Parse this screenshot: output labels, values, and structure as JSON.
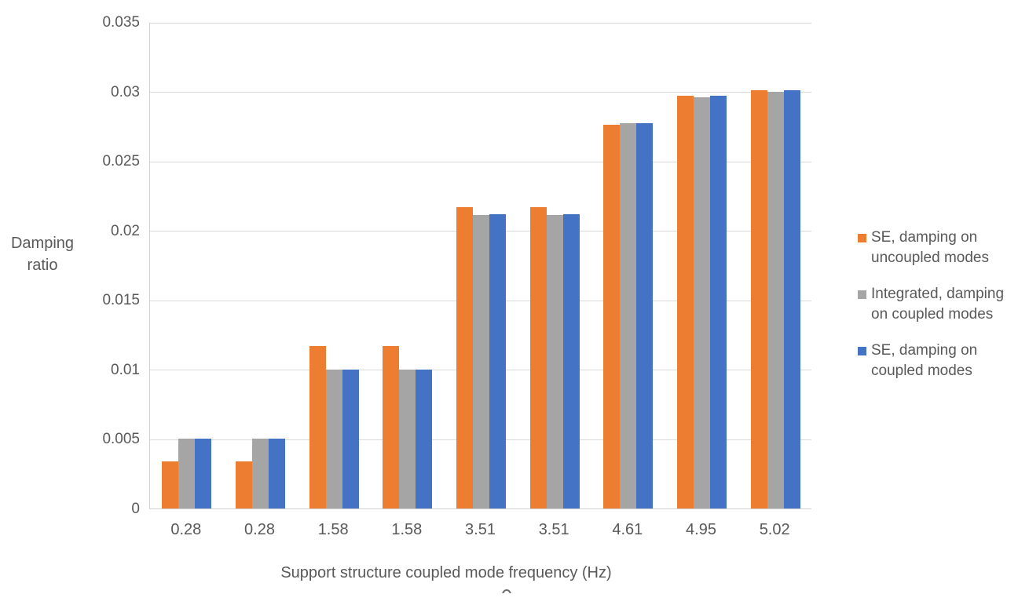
{
  "chart_data": {
    "type": "bar",
    "title": "",
    "xlabel": "Support structure coupled mode frequency (Hz)",
    "ylabel": "Damping ratio",
    "categories": [
      "0.28",
      "0.28",
      "1.58",
      "1.58",
      "3.51",
      "3.51",
      "4.61",
      "4.95",
      "5.02"
    ],
    "series": [
      {
        "name": "SE, damping on uncoupled modes",
        "color": "#ED7D31",
        "values": [
          0.0034,
          0.0034,
          0.0117,
          0.0117,
          0.0217,
          0.0217,
          0.0276,
          0.0297,
          0.0301
        ]
      },
      {
        "name": "Integrated, damping on coupled modes",
        "color": "#A5A5A5",
        "values": [
          0.005,
          0.005,
          0.01,
          0.01,
          0.0211,
          0.0211,
          0.0277,
          0.0296,
          0.03
        ]
      },
      {
        "name": "SE, damping on coupled modes",
        "color": "#4472C4",
        "values": [
          0.005,
          0.005,
          0.01,
          0.01,
          0.0212,
          0.0212,
          0.0277,
          0.0297,
          0.0301
        ]
      }
    ],
    "ylim": [
      0,
      0.035
    ],
    "ytick_step": 0.005,
    "yticks": [
      "0",
      "0.005",
      "0.01",
      "0.015",
      "0.02",
      "0.025",
      "0.03",
      "0.035"
    ],
    "grid": true,
    "legend_position": "right",
    "axis_text_color": "#595959",
    "gridline_color": "#D9D9D9"
  }
}
